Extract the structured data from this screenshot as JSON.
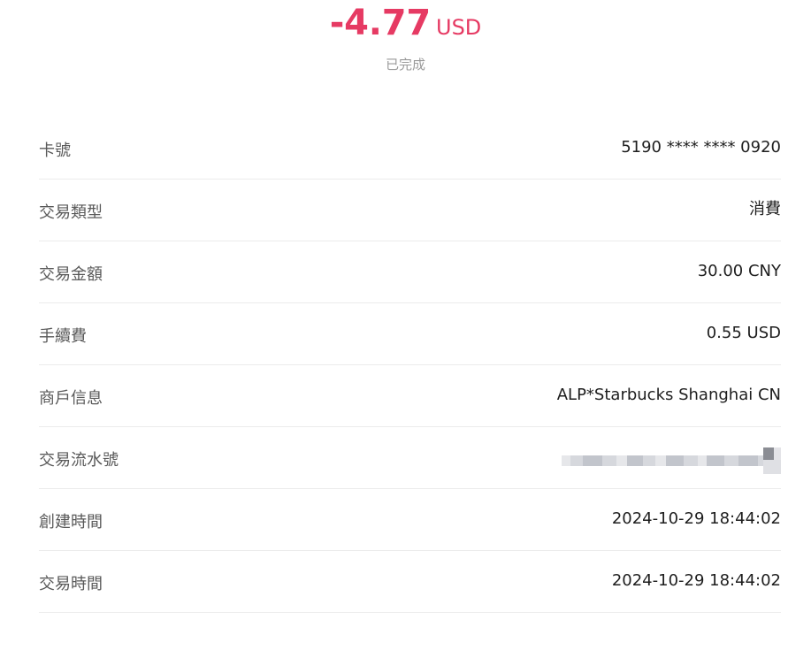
{
  "header": {
    "amount": "-4.77",
    "currency": "USD",
    "status": "已完成"
  },
  "details": [
    {
      "label": "卡號",
      "value": "5190 **** **** 0920"
    },
    {
      "label": "交易類型",
      "value": "消費"
    },
    {
      "label": "交易金額",
      "value": "30.00 CNY"
    },
    {
      "label": "手續費",
      "value": "0.55 USD"
    },
    {
      "label": "商戶信息",
      "value": "ALP*Starbucks Shanghai CN"
    },
    {
      "label": "交易流水號",
      "value": ""
    },
    {
      "label": "創建時間",
      "value": "2024-10-29 18:44:02"
    },
    {
      "label": "交易時間",
      "value": "2024-10-29 18:44:02"
    }
  ],
  "colors": {
    "amount": "#e63a63",
    "status": "#9a9a9a",
    "label": "#595959",
    "value": "#1e1e1e",
    "divider": "#ececec"
  }
}
